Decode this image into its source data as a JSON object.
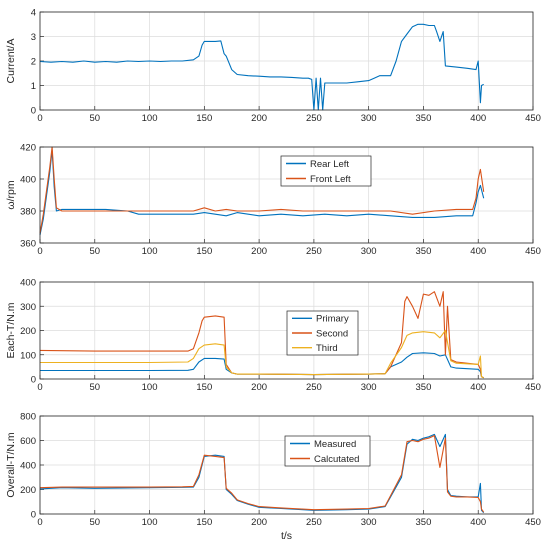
{
  "chart_data": [
    {
      "type": "line",
      "ylabel": "Current/A",
      "xlabel": "",
      "xlim": [
        0,
        450
      ],
      "ylim": [
        0,
        4
      ],
      "xticks": [
        "0",
        "50",
        "100",
        "150",
        "200",
        "250",
        "300",
        "350",
        "400",
        "450"
      ],
      "yticks": [
        "0",
        "1",
        "2",
        "3",
        "4"
      ],
      "grid": true,
      "legend": "none",
      "series": [
        {
          "color": "#0072BD",
          "x": [
            0,
            10,
            20,
            30,
            40,
            50,
            60,
            70,
            80,
            90,
            100,
            110,
            120,
            130,
            140,
            145,
            148,
            150,
            160,
            165,
            168,
            170,
            175,
            180,
            190,
            200,
            210,
            220,
            230,
            240,
            245,
            248,
            250,
            252,
            254,
            256,
            258,
            260,
            270,
            280,
            290,
            300,
            305,
            310,
            320,
            325,
            330,
            335,
            340,
            345,
            350,
            355,
            360,
            362,
            365,
            368,
            370,
            380,
            390,
            398,
            400,
            402,
            403,
            405
          ],
          "y": [
            1.98,
            1.95,
            1.98,
            1.95,
            2.0,
            1.95,
            1.98,
            1.95,
            2.0,
            1.98,
            2.0,
            1.98,
            2.0,
            2.0,
            2.05,
            2.2,
            2.65,
            2.8,
            2.8,
            2.82,
            2.3,
            2.2,
            1.65,
            1.45,
            1.4,
            1.38,
            1.35,
            1.35,
            1.33,
            1.3,
            1.3,
            1.25,
            0.0,
            1.3,
            0.0,
            1.3,
            0.0,
            1.1,
            1.1,
            1.1,
            1.15,
            1.2,
            1.3,
            1.4,
            1.4,
            2.0,
            2.8,
            3.1,
            3.4,
            3.5,
            3.5,
            3.45,
            3.45,
            3.2,
            2.8,
            3.2,
            1.8,
            1.75,
            1.7,
            1.65,
            2.0,
            0.3,
            1.0,
            1.05
          ]
        }
      ]
    },
    {
      "type": "line",
      "ylabel": "ω/rpm",
      "xlabel": "",
      "xlim": [
        0,
        450
      ],
      "ylim": [
        360,
        420
      ],
      "xticks": [
        "0",
        "50",
        "100",
        "150",
        "200",
        "250",
        "300",
        "350",
        "400",
        "450"
      ],
      "yticks": [
        "360",
        "380",
        "400",
        "420"
      ],
      "grid": true,
      "legend": "top-center",
      "series": [
        {
          "name": "Rear Left",
          "color": "#0072BD",
          "x": [
            0,
            3,
            6,
            9,
            11,
            13,
            15,
            20,
            40,
            60,
            80,
            90,
            100,
            120,
            140,
            150,
            170,
            180,
            200,
            220,
            240,
            260,
            280,
            300,
            320,
            340,
            360,
            380,
            395,
            398,
            400,
            402,
            405
          ],
          "y": [
            365,
            375,
            390,
            405,
            418,
            395,
            380,
            381,
            381,
            381,
            380,
            378,
            378,
            378,
            378,
            379,
            377,
            379,
            377,
            378,
            377,
            378,
            377,
            378,
            377,
            376,
            376,
            377,
            377,
            385,
            392,
            396,
            388
          ]
        },
        {
          "name": "Front Left",
          "color": "#D95319",
          "x": [
            0,
            3,
            6,
            9,
            11,
            13,
            15,
            20,
            40,
            60,
            80,
            100,
            120,
            140,
            150,
            160,
            170,
            180,
            200,
            220,
            240,
            260,
            280,
            300,
            320,
            340,
            360,
            380,
            395,
            398,
            400,
            402,
            405
          ],
          "y": [
            366,
            378,
            393,
            408,
            420,
            400,
            382,
            380,
            380,
            380,
            380,
            380,
            380,
            380,
            382,
            380,
            381,
            380,
            380,
            381,
            380,
            380,
            380,
            380,
            380,
            378,
            380,
            381,
            381,
            388,
            400,
            406,
            392
          ]
        }
      ]
    },
    {
      "type": "line",
      "ylabel": "Each-T/N.m",
      "xlabel": "",
      "xlim": [
        0,
        450
      ],
      "ylim": [
        0,
        400
      ],
      "xticks": [
        "0",
        "50",
        "100",
        "150",
        "200",
        "250",
        "300",
        "350",
        "400",
        "450"
      ],
      "yticks": [
        "0",
        "100",
        "200",
        "300",
        "400"
      ],
      "grid": true,
      "legend": "top-center",
      "series": [
        {
          "name": "Primary",
          "color": "#0072BD",
          "x": [
            0,
            50,
            100,
            135,
            140,
            145,
            150,
            160,
            168,
            170,
            175,
            180,
            200,
            250,
            300,
            315,
            320,
            330,
            335,
            340,
            350,
            360,
            365,
            370,
            375,
            380,
            400,
            402,
            403,
            405
          ],
          "y": [
            35,
            35,
            35,
            36,
            40,
            70,
            85,
            85,
            82,
            40,
            25,
            20,
            20,
            18,
            20,
            22,
            50,
            70,
            90,
            105,
            108,
            105,
            95,
            100,
            50,
            45,
            40,
            30,
            10,
            5
          ]
        },
        {
          "name": "Second",
          "color": "#D95319",
          "x": [
            0,
            50,
            100,
            135,
            140,
            145,
            148,
            150,
            160,
            168,
            170,
            175,
            180,
            200,
            250,
            300,
            315,
            320,
            330,
            333,
            335,
            340,
            345,
            350,
            355,
            360,
            365,
            368,
            370,
            372,
            375,
            380,
            400,
            402,
            403,
            405
          ],
          "y": [
            118,
            115,
            115,
            115,
            125,
            190,
            240,
            255,
            260,
            255,
            60,
            25,
            20,
            20,
            18,
            20,
            22,
            50,
            150,
            320,
            340,
            300,
            250,
            350,
            345,
            360,
            300,
            360,
            100,
            300,
            80,
            70,
            60,
            40,
            10,
            5
          ]
        },
        {
          "name": "Third",
          "color": "#EDB120",
          "x": [
            0,
            50,
            100,
            135,
            140,
            145,
            150,
            160,
            168,
            170,
            175,
            180,
            200,
            250,
            300,
            315,
            320,
            330,
            335,
            340,
            350,
            360,
            365,
            370,
            375,
            380,
            400,
            402,
            403,
            405
          ],
          "y": [
            68,
            68,
            68,
            70,
            85,
            125,
            140,
            145,
            140,
            50,
            25,
            20,
            20,
            18,
            20,
            22,
            65,
            130,
            180,
            190,
            195,
            190,
            170,
            200,
            75,
            65,
            60,
            95,
            10,
            5
          ]
        }
      ]
    },
    {
      "type": "line",
      "ylabel": "Overall-T/N.m",
      "xlabel": "t/s",
      "xlim": [
        0,
        450
      ],
      "ylim": [
        0,
        800
      ],
      "xticks": [
        "0",
        "50",
        "100",
        "150",
        "200",
        "250",
        "300",
        "350",
        "400",
        "450"
      ],
      "yticks": [
        "0",
        "200",
        "400",
        "600",
        "800"
      ],
      "grid": true,
      "legend": "center-right-of-middle",
      "series": [
        {
          "name": "Measured",
          "color": "#0072BD",
          "x": [
            0,
            20,
            50,
            100,
            130,
            140,
            145,
            150,
            160,
            168,
            170,
            175,
            180,
            190,
            200,
            220,
            250,
            280,
            300,
            315,
            320,
            330,
            335,
            340,
            345,
            350,
            355,
            360,
            365,
            370,
            372,
            375,
            380,
            390,
            400,
            402,
            403,
            405
          ],
          "y": [
            205,
            215,
            210,
            215,
            218,
            220,
            300,
            470,
            480,
            470,
            200,
            160,
            110,
            80,
            55,
            45,
            30,
            35,
            40,
            60,
            140,
            300,
            570,
            610,
            600,
            620,
            630,
            650,
            550,
            650,
            200,
            150,
            145,
            140,
            140,
            250,
            30,
            10
          ]
        },
        {
          "name": "Calcutated",
          "color": "#D95319",
          "x": [
            0,
            20,
            50,
            100,
            130,
            140,
            145,
            150,
            160,
            168,
            170,
            175,
            180,
            190,
            200,
            220,
            250,
            280,
            300,
            315,
            320,
            330,
            335,
            340,
            345,
            350,
            355,
            360,
            365,
            370,
            372,
            375,
            380,
            390,
            400,
            402,
            403,
            405
          ],
          "y": [
            215,
            220,
            220,
            220,
            222,
            225,
            320,
            480,
            470,
            460,
            210,
            170,
            115,
            85,
            60,
            50,
            35,
            40,
            45,
            65,
            150,
            320,
            590,
            600,
            590,
            610,
            620,
            640,
            380,
            620,
            180,
            145,
            140,
            140,
            135,
            100,
            40,
            15
          ]
        }
      ]
    }
  ]
}
